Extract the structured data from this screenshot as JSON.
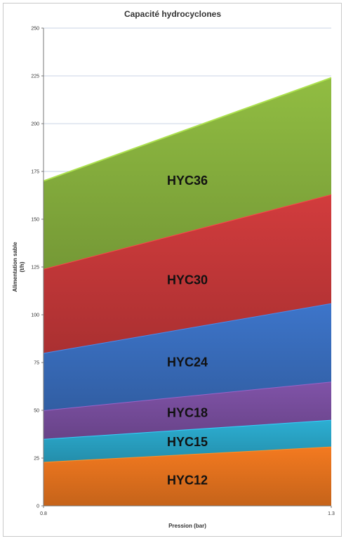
{
  "chart_data": {
    "type": "area",
    "stacked": true,
    "title": "Capacité hydrocyclones",
    "xlabel": "Pression (bar)",
    "ylabel_line1": "Alimentation sable",
    "ylabel_line2": "(t/h)",
    "x": [
      0.8,
      1.3
    ],
    "x_tick_labels": [
      "0.8",
      "1.3"
    ],
    "ylim": [
      0,
      250
    ],
    "y_ticks": [
      0,
      25,
      50,
      75,
      100,
      125,
      150,
      175,
      200,
      225,
      250
    ],
    "grid": true,
    "series": [
      {
        "name": "HYC12",
        "values": [
          23,
          31
        ],
        "color": "#e8741e"
      },
      {
        "name": "HYC15",
        "values": [
          12,
          14
        ],
        "color": "#2aa7c9"
      },
      {
        "name": "HYC18",
        "values": [
          15,
          20
        ],
        "color": "#7a4fa0"
      },
      {
        "name": "HYC24",
        "values": [
          30,
          41
        ],
        "color": "#3a6fc0"
      },
      {
        "name": "HYC30",
        "values": [
          44,
          57
        ],
        "color": "#c8393a"
      },
      {
        "name": "HYC36",
        "values": [
          46,
          61
        ],
        "color": "#8ab43f"
      }
    ]
  }
}
